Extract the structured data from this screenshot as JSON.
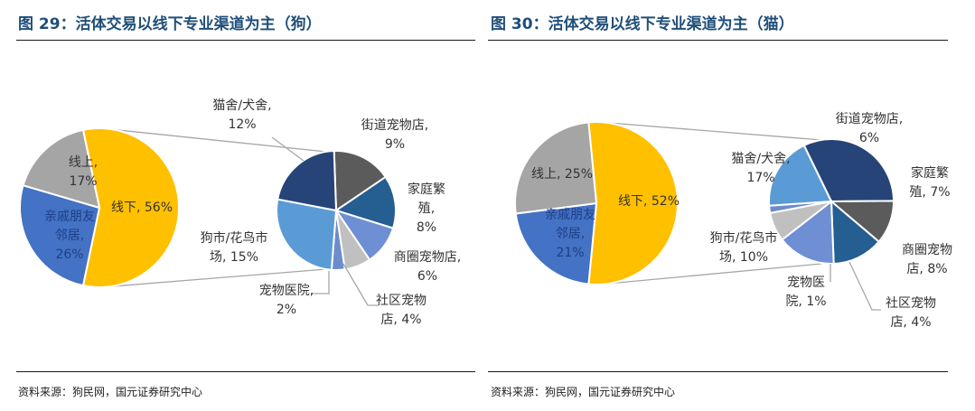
{
  "charts": [
    {
      "title": "图 29：活体交易以线下专业渠道为主（狗）",
      "source": "资料来源：狗民网，国元证券研究中心",
      "main_labels": [
        {
          "lines": [
            "线下, 56%"
          ],
          "color": "#333333"
        },
        {
          "lines": [
            "亲戚朋友",
            "邻居,",
            "26%"
          ],
          "color": "#1f3f86"
        },
        {
          "lines": [
            "线上,",
            "17%"
          ],
          "color": "#333333"
        }
      ],
      "detail_labels": [
        {
          "lines": [
            "街道宠物店,",
            "9%"
          ]
        },
        {
          "lines": [
            "家庭繁",
            "殖,",
            "8%"
          ]
        },
        {
          "lines": [
            "商圈宠物店,",
            "6%"
          ]
        },
        {
          "lines": [
            "社区宠物",
            "店, 4%"
          ]
        },
        {
          "lines": [
            "宠物医院,",
            "2%"
          ]
        },
        {
          "lines": [
            "狗市/花鸟市",
            "场, 15%"
          ]
        },
        {
          "lines": [
            "猫舍/犬舍,",
            "12%"
          ]
        }
      ]
    },
    {
      "title": "图 30：活体交易以线下专业渠道为主（猫）",
      "source": "资料来源：狗民网，国元证券研究中心",
      "main_labels": [
        {
          "lines": [
            "线下, 52%"
          ],
          "color": "#333333"
        },
        {
          "lines": [
            "亲戚朋友",
            "邻居,",
            "21%"
          ],
          "color": "#1f3f86"
        },
        {
          "lines": [
            "线上, 25%"
          ],
          "color": "#333333"
        }
      ],
      "detail_labels": [
        {
          "lines": [
            "猫舍/犬舍,",
            "17%"
          ]
        },
        {
          "lines": [
            "街道宠物店,",
            "6%"
          ]
        },
        {
          "lines": [
            "家庭繁",
            "殖, 7%"
          ]
        },
        {
          "lines": [
            "商圈宠物",
            "店, 8%"
          ]
        },
        {
          "lines": [
            "社区宠物",
            "店, 4%"
          ]
        },
        {
          "lines": [
            "宠物医",
            "院, 1%"
          ]
        },
        {
          "lines": [
            "狗市/花鸟市",
            "场, 10%"
          ]
        }
      ]
    }
  ],
  "chart_data": [
    {
      "type": "pie",
      "title": "图 29：活体交易以线下专业渠道为主（狗）",
      "main_pie": {
        "categories": [
          "线下",
          "亲戚朋友邻居",
          "线上"
        ],
        "values": [
          56,
          26,
          17
        ],
        "colors": [
          "#ffc000",
          "#4472c4",
          "#a5a5a5"
        ]
      },
      "detail_pie": {
        "parent": "线下",
        "categories": [
          "街道宠物店",
          "家庭繁殖",
          "商圈宠物店",
          "社区宠物店",
          "宠物医院",
          "狗市/花鸟市场",
          "猫舍/犬舍"
        ],
        "values": [
          9,
          8,
          6,
          4,
          2,
          15,
          12
        ],
        "colors": [
          "#5b5b5b",
          "#255e91",
          "#6f8fd4",
          "#c0c0c0",
          "#6c8ccc",
          "#5b9bd5",
          "#264478"
        ]
      }
    },
    {
      "type": "pie",
      "title": "图 30：活体交易以线下专业渠道为主（猫）",
      "main_pie": {
        "categories": [
          "线下",
          "亲戚朋友邻居",
          "线上"
        ],
        "values": [
          52,
          21,
          25
        ],
        "colors": [
          "#ffc000",
          "#4472c4",
          "#a5a5a5"
        ]
      },
      "detail_pie": {
        "parent": "线下",
        "categories": [
          "猫舍/犬舍",
          "街道宠物店",
          "家庭繁殖",
          "商圈宠物店",
          "社区宠物店",
          "宠物医院",
          "狗市/花鸟市场"
        ],
        "values": [
          17,
          6,
          7,
          8,
          4,
          1,
          10
        ],
        "colors": [
          "#264478",
          "#5b5b5b",
          "#255e91",
          "#6f8fd4",
          "#c0c0c0",
          "#6c8ccc",
          "#5b9bd5"
        ]
      }
    }
  ]
}
